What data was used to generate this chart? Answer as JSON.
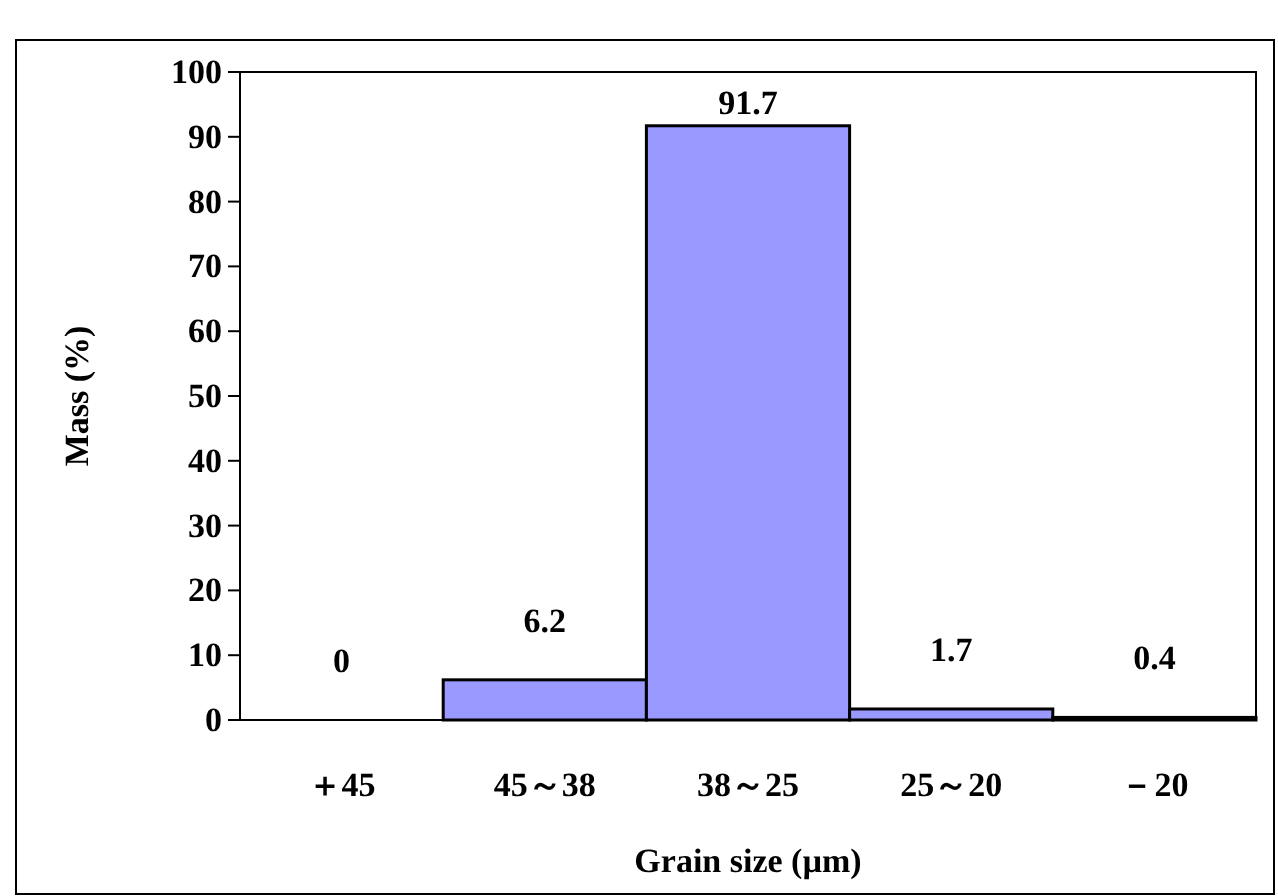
{
  "chart_data": {
    "type": "bar",
    "xlabel": "Grain size (µm)",
    "ylabel": "Mass (%)",
    "categories": [
      "＋45",
      "45～38",
      "38～25",
      "25～20",
      "－20"
    ],
    "values": [
      0,
      6.2,
      91.7,
      1.7,
      0.4
    ],
    "color": "#9999ff",
    "ylim": [
      0,
      100
    ],
    "yticks": [
      0,
      10,
      20,
      30,
      40,
      50,
      60,
      70,
      80,
      90,
      100
    ],
    "data_labels": true
  }
}
